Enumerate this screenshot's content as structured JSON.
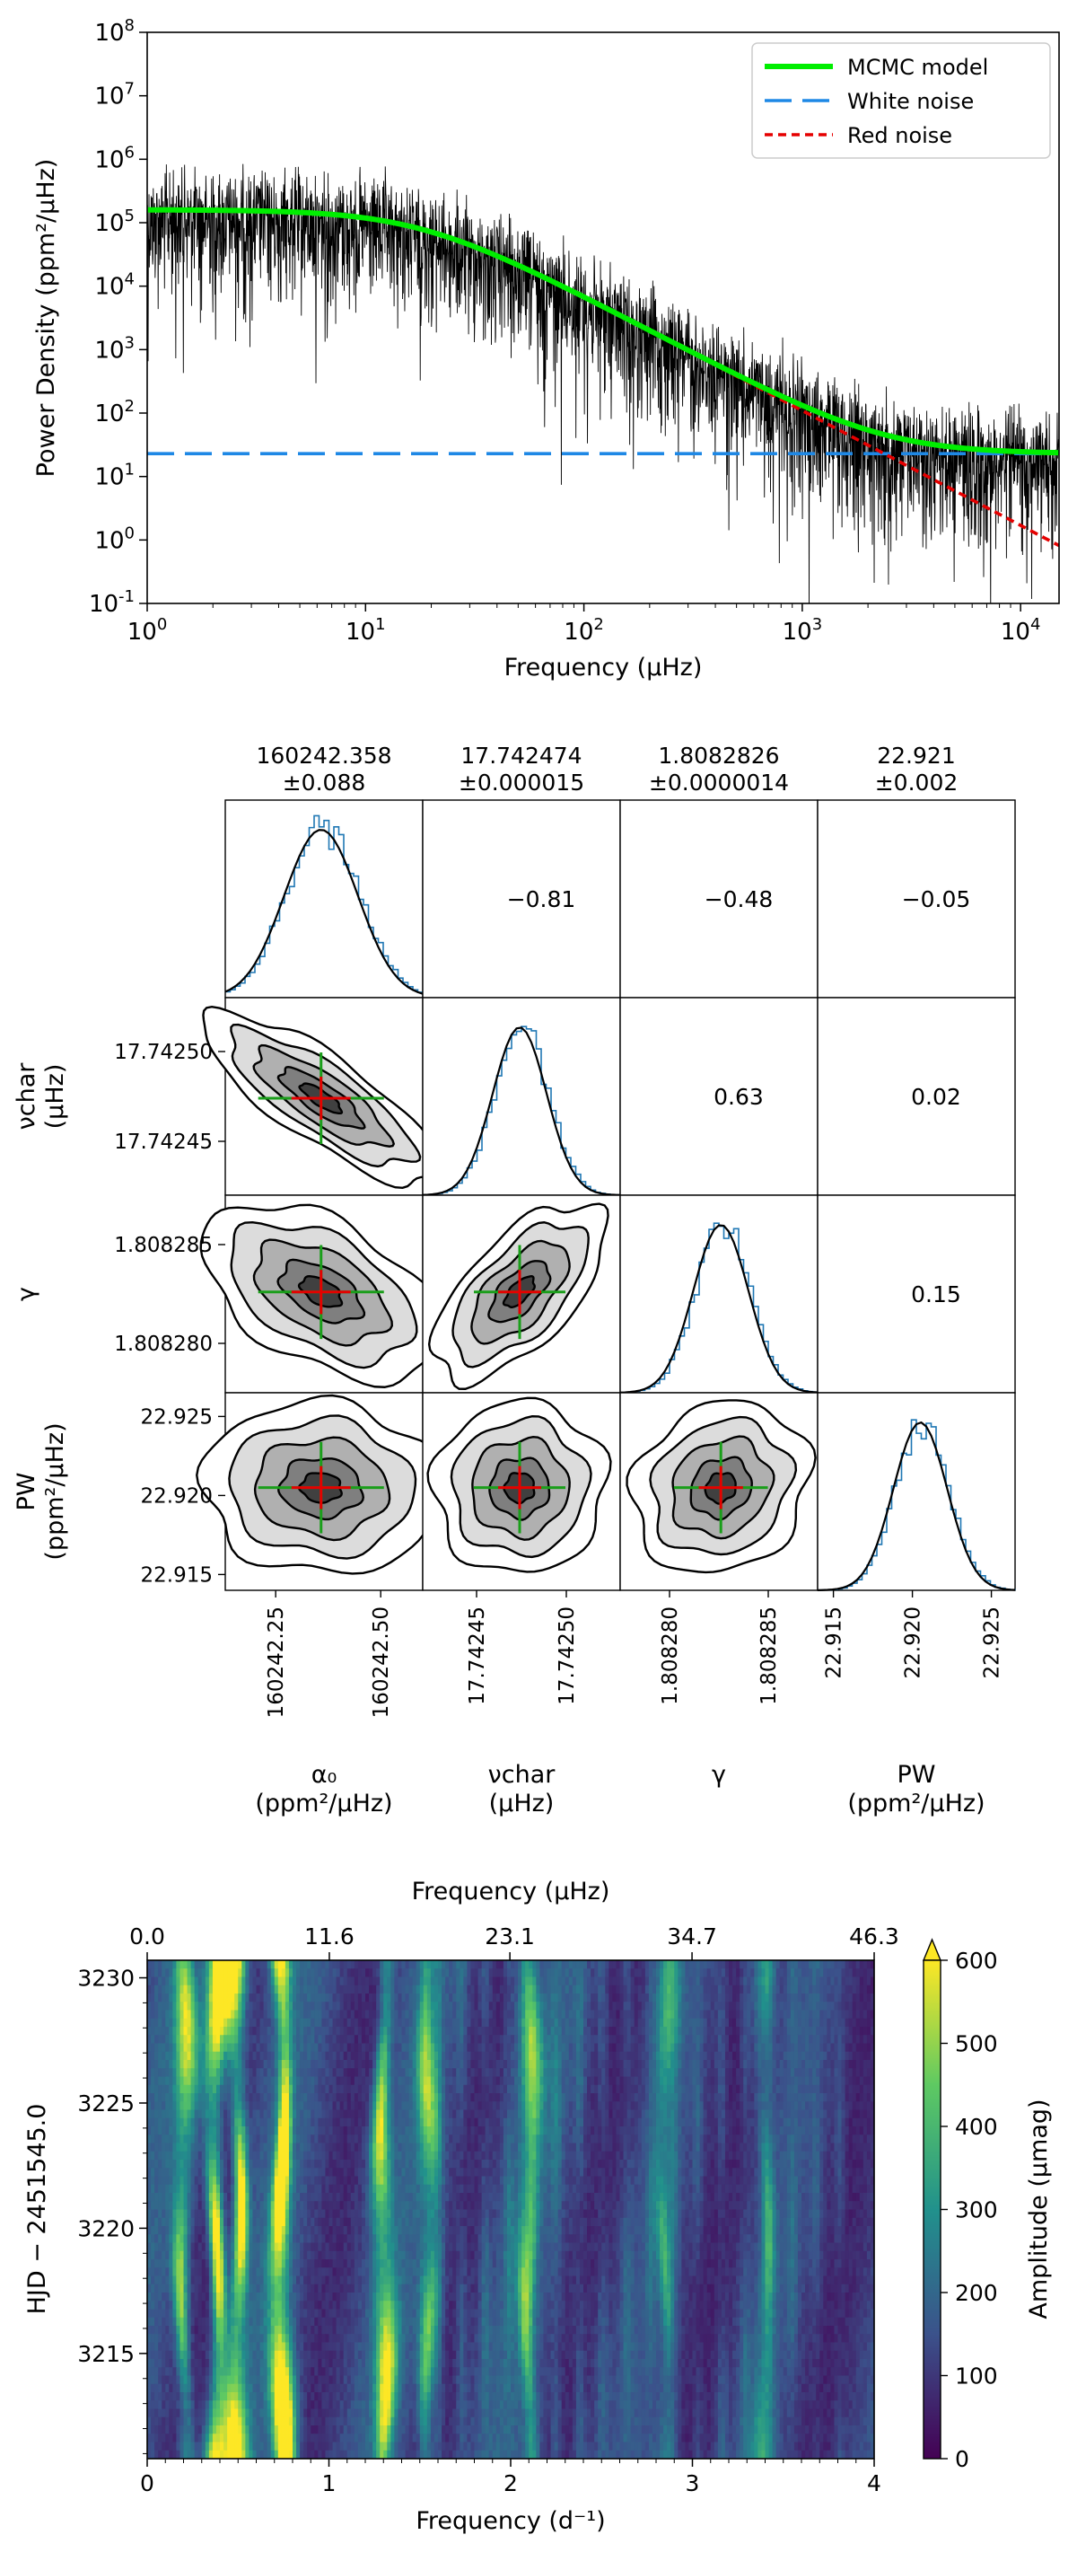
{
  "panels": {
    "psd": {
      "type": "line",
      "xlabel": "Frequency (μHz)",
      "ylabel": "Power Density (ppm²/μHz)",
      "xscale": "log",
      "yscale": "log",
      "xlim": [
        1,
        15000
      ],
      "ylim": [
        0.1,
        100000000
      ],
      "x_ticks": [
        1,
        10,
        100,
        1000,
        10000
      ],
      "y_ticks": [
        0.1,
        1,
        10,
        100,
        1000,
        10000,
        100000,
        1000000,
        10000000,
        100000000
      ],
      "x_tick_labels": [
        "10^0",
        "10^1",
        "10^2",
        "10^3",
        "10^4"
      ],
      "y_tick_labels": [
        "10^-1",
        "10^0",
        "10^1",
        "10^2",
        "10^3",
        "10^4",
        "10^5",
        "10^6",
        "10^7",
        "10^8"
      ],
      "series": [
        {
          "name": "MCMC model",
          "color": "#00ee00",
          "style": "solid",
          "alpha0": 160242.358,
          "nu_char": 17.742474,
          "gamma": 1.8082826,
          "white": 22.921
        },
        {
          "name": "White noise",
          "color": "#1e88e5",
          "style": "dashed",
          "value": 22.921
        },
        {
          "name": "Red noise",
          "color": "#e50000",
          "style": "dotted"
        }
      ],
      "legend_position": "top-right"
    },
    "corner": {
      "type": "scatter",
      "parameters": [
        {
          "summary_value": "160242.358",
          "summary_error": "±0.088",
          "bottom_label": "α₀",
          "bottom_unit": "(ppm²/μHz)",
          "side_label": "",
          "side_unit": "",
          "mean": 160242.358,
          "sigma": 0.088,
          "range": [
            160242.13,
            160242.6
          ],
          "ticks": [
            "160242.25",
            "160242.50"
          ],
          "tick_values": [
            160242.25,
            160242.5
          ]
        },
        {
          "summary_value": "17.742474",
          "summary_error": "±0.000015",
          "bottom_label": "νchar",
          "bottom_unit": "(μHz)",
          "side_label": "νchar",
          "side_unit": "(μHz)",
          "mean": 17.742474,
          "sigma": 1.5e-05,
          "range": [
            17.74242,
            17.74253
          ],
          "ticks": [
            "17.74245",
            "17.74250"
          ],
          "tick_values": [
            17.74245,
            17.7425
          ]
        },
        {
          "summary_value": "1.8082826",
          "summary_error": "±0.0000014",
          "bottom_label": "γ",
          "bottom_unit": "",
          "side_label": "γ",
          "side_unit": "",
          "mean": 1.8082826,
          "sigma": 1.4e-06,
          "range": [
            1.8082775,
            1.8082875
          ],
          "ticks": [
            "1.808280",
            "1.808285"
          ],
          "tick_values": [
            1.80828,
            1.808285
          ]
        },
        {
          "summary_value": "22.921",
          "summary_error": "±0.002",
          "bottom_label": "PW",
          "bottom_unit": "(ppm²/μHz)",
          "side_label": "PW",
          "side_unit": "(ppm²/μHz)",
          "mean": 22.9205,
          "sigma": 0.0017,
          "range": [
            22.914,
            22.9265
          ],
          "ticks": [
            "22.915",
            "22.920",
            "22.925"
          ],
          "tick_values": [
            22.915,
            22.92,
            22.925
          ]
        }
      ],
      "correlations": [
        {
          "row": 0,
          "col": 1,
          "value": "−0.81"
        },
        {
          "row": 0,
          "col": 2,
          "value": "−0.48"
        },
        {
          "row": 0,
          "col": 3,
          "value": "−0.05"
        },
        {
          "row": 1,
          "col": 2,
          "value": "0.63"
        },
        {
          "row": 1,
          "col": 3,
          "value": "0.02"
        },
        {
          "row": 2,
          "col": 3,
          "value": "0.15"
        }
      ],
      "correlation_coefficients": {
        "r01": -0.81,
        "r02": -0.48,
        "r03": -0.05,
        "r12": 0.63,
        "r13": 0.02,
        "r23": 0.15
      }
    },
    "dynamic": {
      "type": "heatmap",
      "top_axis_label": "Frequency (μHz)",
      "top_ticks": [
        "0.0",
        "11.6",
        "23.1",
        "34.7",
        "46.3"
      ],
      "top_tick_values": [
        0.0,
        11.6,
        23.1,
        34.7,
        46.3
      ],
      "xlabel": "Frequency (d⁻¹)",
      "x_ticks": [
        "0",
        "1",
        "2",
        "3",
        "4"
      ],
      "x_tick_values": [
        0,
        1,
        2,
        3,
        4
      ],
      "xlim": [
        0,
        4
      ],
      "ylabel": "HJD − 2451545.0",
      "y_ticks": [
        "3215",
        "3220",
        "3225",
        "3230"
      ],
      "y_tick_values": [
        3215,
        3220,
        3225,
        3230
      ],
      "ylim": [
        3210.8,
        3230.7
      ],
      "colorbar_label": "Amplitude (μmag)",
      "colorbar_ticks": [
        "0",
        "100",
        "200",
        "300",
        "400",
        "500",
        "600"
      ],
      "colorbar_tick_values": [
        0,
        100,
        200,
        300,
        400,
        500,
        600
      ],
      "color_range": [
        0,
        600
      ],
      "colormap": [
        "#440154",
        "#3b528b",
        "#21918c",
        "#5ec962",
        "#fde725"
      ],
      "ridges": [
        {
          "freq": 0.2,
          "amp": 380
        },
        {
          "freq": 0.38,
          "amp": 560
        },
        {
          "freq": 0.5,
          "amp": 520
        },
        {
          "freq": 0.74,
          "amp": 640
        },
        {
          "freq": 1.3,
          "amp": 420
        },
        {
          "freq": 1.55,
          "amp": 330
        },
        {
          "freq": 2.1,
          "amp": 300
        },
        {
          "freq": 2.85,
          "amp": 260
        },
        {
          "freq": 3.4,
          "amp": 230
        }
      ]
    }
  }
}
